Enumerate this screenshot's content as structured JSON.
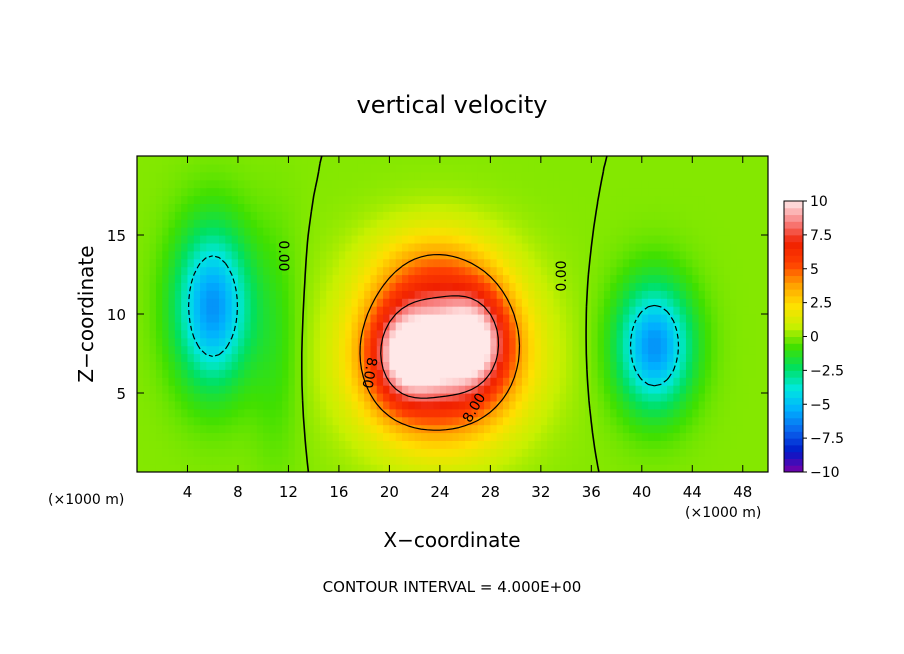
{
  "chart_data": {
    "type": "heatmap",
    "title": "vertical velocity",
    "xlabel": "X−coordinate",
    "ylabel": "Z−coordinate",
    "x_unit_left": "(×1000 m)",
    "x_unit_right": "(×1000 m)",
    "xlim": [
      0,
      50
    ],
    "ylim": [
      0,
      20
    ],
    "xticks": [
      4,
      8,
      12,
      16,
      20,
      24,
      28,
      32,
      36,
      40,
      44,
      48
    ],
    "yticks": [
      5,
      10,
      15
    ],
    "colorbar": {
      "min": -10,
      "max": 10,
      "ticks": [
        10,
        7.5,
        5,
        2.5,
        0,
        -2.5,
        -5,
        -7.5,
        -10
      ],
      "tick_labels": [
        "10",
        "7.5",
        "5",
        "2.5",
        "0",
        "−2.5",
        "−5",
        "−7.5",
        "−10"
      ],
      "colors": [
        "#7a00a8",
        "#0018c8",
        "#0a66ee",
        "#00b0ff",
        "#00e8e0",
        "#00e060",
        "#40e000",
        "#c8f000",
        "#ffe000",
        "#ffa000",
        "#ff4000",
        "#f02000",
        "#f88080",
        "#ffe8e8"
      ]
    },
    "contour_labels": [
      "0.00",
      "0.00",
      "8.00",
      "8.00"
    ],
    "footer": "CONTOUR INTERVAL = 4.000E+00",
    "features": [
      {
        "x": 24,
        "z": 7.5,
        "sx": 6,
        "sz": 5,
        "w": 10
      },
      {
        "x": 21,
        "z": 7.5,
        "sx": 2.5,
        "sz": 3,
        "w": 4
      },
      {
        "x": 27,
        "z": 8.5,
        "sx": 2.5,
        "sz": 3,
        "w": 4
      },
      {
        "x": 23.5,
        "z": 13,
        "sx": 5,
        "sz": 3,
        "w": 2
      },
      {
        "x": 6,
        "z": 10.5,
        "sx": 3,
        "sz": 5,
        "w": -6
      },
      {
        "x": 41,
        "z": 8,
        "sx": 3,
        "sz": 4,
        "w": -6
      },
      {
        "x": 11,
        "z": 8,
        "sx": 2,
        "sz": 7,
        "w": -1
      }
    ]
  }
}
